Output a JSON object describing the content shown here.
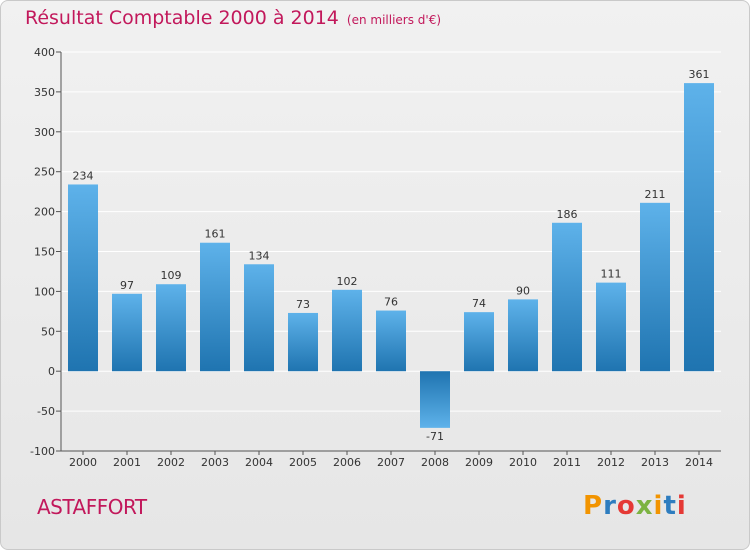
{
  "header": {
    "title": "Résultat Comptable 2000 à 2014",
    "subtitle": "(en milliers d'€)"
  },
  "footer": {
    "town": "ASTAFFORT",
    "brand": "Proxiti",
    "brand_letter_colors": [
      "#f29400",
      "#2e7dbf",
      "#e53935",
      "#7cb342",
      "#f29400",
      "#2e7dbf",
      "#e53935"
    ]
  },
  "colors": {
    "bar_light": "#5eb2ea",
    "bar_dark": "#1f74b0",
    "title": "#c2185b",
    "grid": "#ffffff",
    "axis_text": "#333333"
  },
  "chart_data": {
    "type": "bar",
    "categories": [
      "2000",
      "2001",
      "2002",
      "2003",
      "2004",
      "2005",
      "2006",
      "2007",
      "2008",
      "2009",
      "2010",
      "2011",
      "2012",
      "2013",
      "2014"
    ],
    "values": [
      234,
      97,
      109,
      161,
      134,
      73,
      102,
      76,
      -71,
      74,
      90,
      186,
      111,
      211,
      361
    ],
    "ylim": [
      -100,
      400
    ],
    "yticks": [
      -100,
      -50,
      0,
      50,
      100,
      150,
      200,
      250,
      300,
      350,
      400
    ],
    "grid": true
  }
}
